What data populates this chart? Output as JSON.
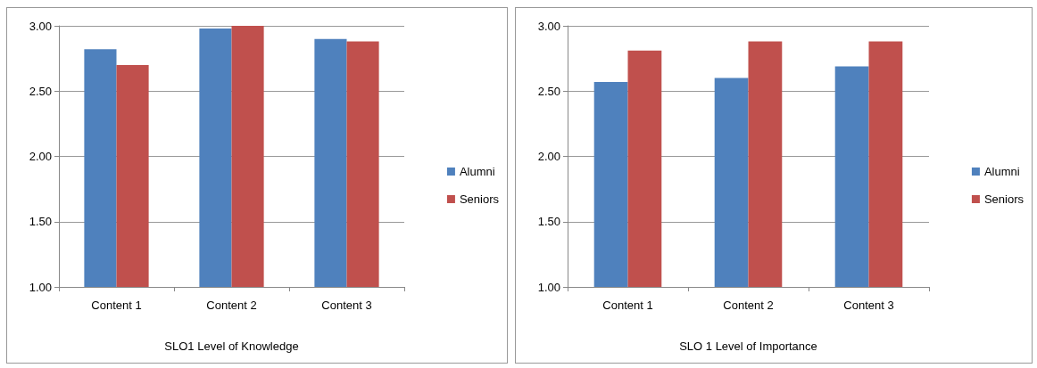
{
  "chart_data": [
    {
      "type": "bar",
      "xlabel": "SLO1 Level of Knowledge",
      "categories": [
        "Content 1",
        "Content 2",
        "Content 3"
      ],
      "series": [
        {
          "name": "Alumni",
          "color": "#4f81bd",
          "values": [
            2.82,
            2.98,
            2.9
          ]
        },
        {
          "name": "Seniors",
          "color": "#c0504d",
          "values": [
            2.7,
            3.0,
            2.88
          ]
        }
      ],
      "ylim": [
        1,
        3
      ],
      "yticks": [
        {
          "value": 1,
          "label": "1.00"
        },
        {
          "value": 1.5,
          "label": "1.50"
        },
        {
          "value": 2,
          "label": "2.00"
        },
        {
          "value": 2.5,
          "label": "2.50"
        },
        {
          "value": 3,
          "label": "3.00"
        }
      ],
      "grid": "y",
      "legend": "right"
    },
    {
      "type": "bar",
      "xlabel": "SLO 1 Level of Importance",
      "categories": [
        "Content 1",
        "Content 2",
        "Content 3"
      ],
      "series": [
        {
          "name": "Alumni",
          "color": "#4f81bd",
          "values": [
            2.57,
            2.6,
            2.69
          ]
        },
        {
          "name": "Seniors",
          "color": "#c0504d",
          "values": [
            2.81,
            2.88,
            2.88
          ]
        }
      ],
      "ylim": [
        1,
        3
      ],
      "yticks": [
        {
          "value": 1,
          "label": "1.00"
        },
        {
          "value": 1.5,
          "label": "1.50"
        },
        {
          "value": 2,
          "label": "2.00"
        },
        {
          "value": 2.5,
          "label": "2.50"
        },
        {
          "value": 3,
          "label": "3.00"
        }
      ],
      "grid": "y",
      "legend": "right"
    }
  ]
}
